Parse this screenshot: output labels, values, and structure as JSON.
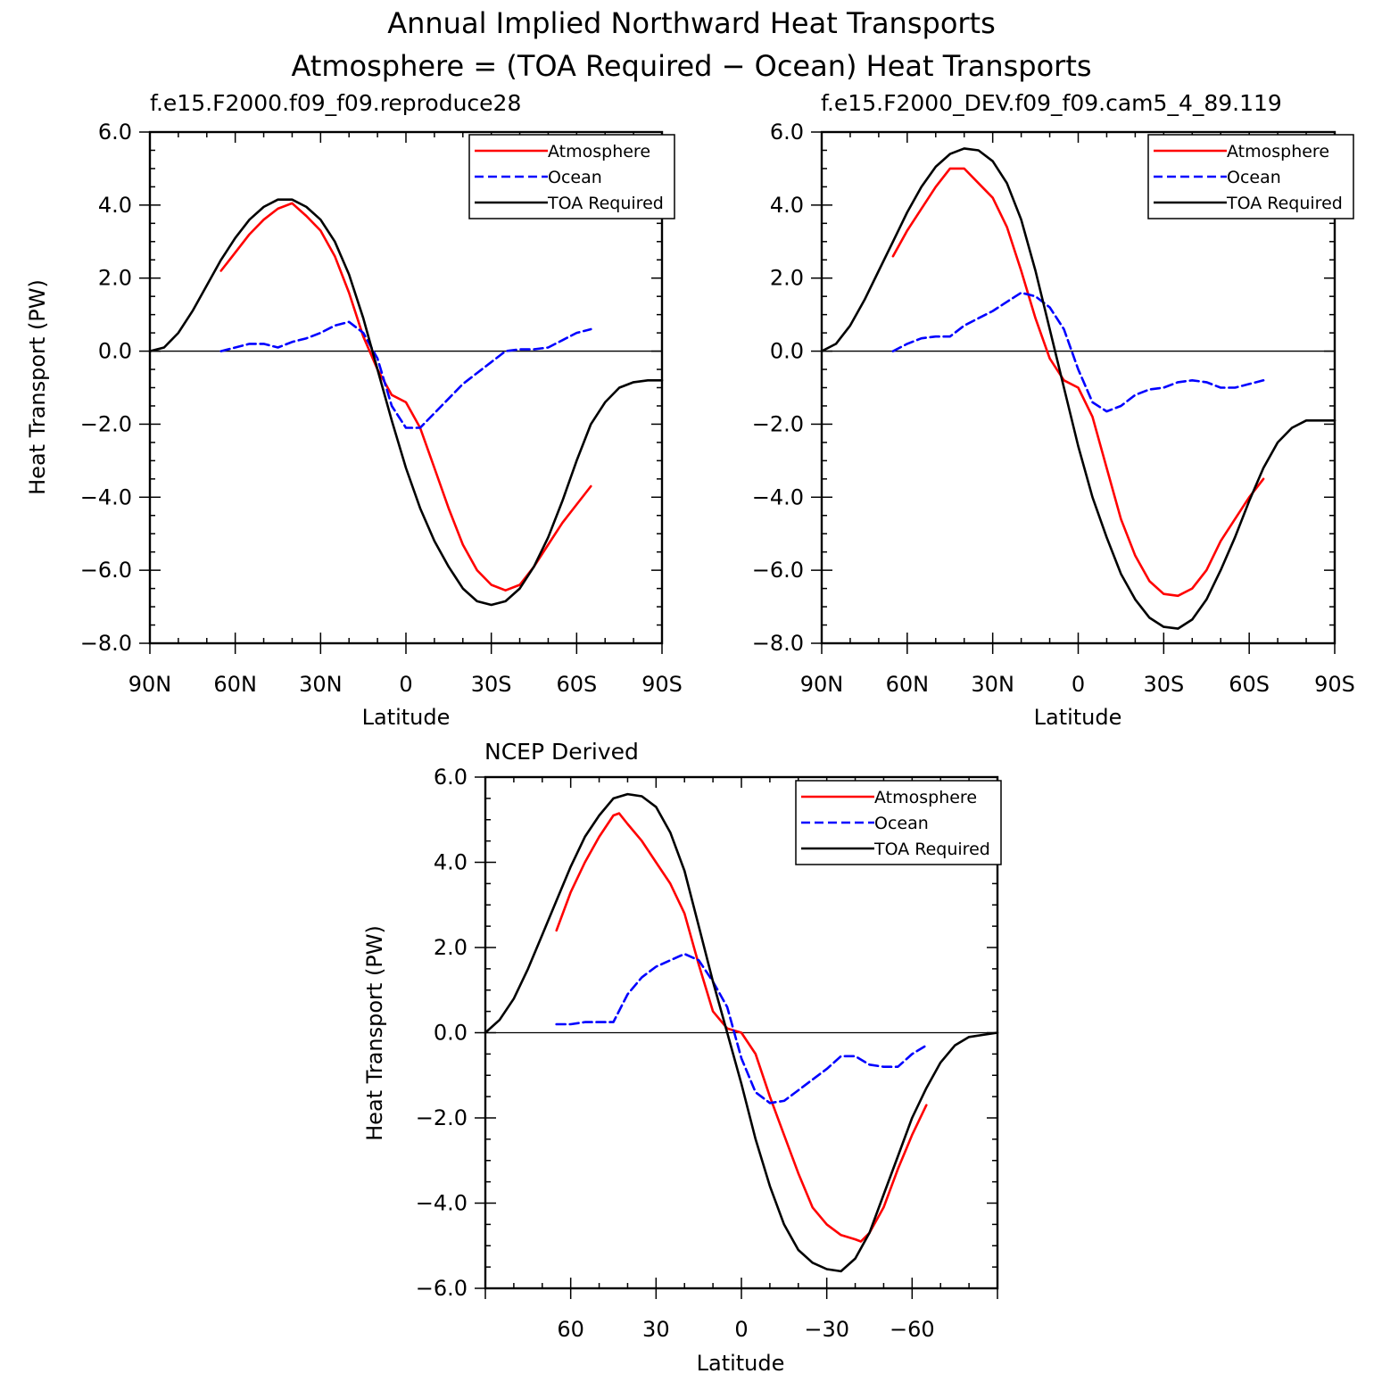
{
  "figure": {
    "title_line1": "Annual Implied Northward Heat Transports",
    "title_line2": "Atmosphere = (TOA Required − Ocean) Heat Transports"
  },
  "colors": {
    "atmosphere": "#ff0000",
    "ocean": "#0000ff",
    "toa": "#000000"
  },
  "chart_data": [
    {
      "type": "line",
      "title": "f.e15.F2000.f09_f09.reproduce28",
      "xlabel": "Latitude",
      "ylabel": "Heat Transport (PW)",
      "xlim": [
        90,
        -90
      ],
      "ylim": [
        -8,
        6
      ],
      "xticks": [
        90,
        60,
        30,
        0,
        -30,
        -60,
        -90
      ],
      "xtick_labels": [
        "90N",
        "60N",
        "30N",
        "0",
        "30S",
        "60S",
        "90S"
      ],
      "yticks": [
        -8,
        -6,
        -4,
        -2,
        0,
        2,
        4,
        6
      ],
      "ytick_labels": [
        "−8.0",
        "−6.0",
        "−4.0",
        "−2.0",
        "0.0",
        "2.0",
        "4.0",
        "6.0"
      ],
      "grid": false,
      "legend_position": "top-right",
      "series": [
        {
          "name": "Atmosphere",
          "color": "#ff0000",
          "dash": "solid",
          "x": [
            65,
            60,
            55,
            50,
            45,
            40,
            35,
            30,
            25,
            20,
            15,
            10,
            5,
            0,
            -5,
            -10,
            -15,
            -20,
            -25,
            -30,
            -35,
            -40,
            -45,
            -50,
            -55,
            -60,
            -65
          ],
          "y": [
            2.2,
            2.7,
            3.2,
            3.6,
            3.9,
            4.05,
            3.7,
            3.3,
            2.6,
            1.6,
            0.4,
            -0.5,
            -1.2,
            -1.4,
            -2.1,
            -3.2,
            -4.3,
            -5.3,
            -6.0,
            -6.4,
            -6.55,
            -6.4,
            -5.9,
            -5.3,
            -4.7,
            -4.2,
            -3.7
          ]
        },
        {
          "name": "Ocean",
          "color": "#0000ff",
          "dash": "dashed",
          "x": [
            65,
            60,
            55,
            50,
            45,
            40,
            35,
            30,
            25,
            20,
            15,
            10,
            5,
            0,
            -5,
            -10,
            -15,
            -20,
            -25,
            -30,
            -35,
            -40,
            -45,
            -50,
            -55,
            -60,
            -65
          ],
          "y": [
            0.0,
            0.1,
            0.2,
            0.2,
            0.1,
            0.25,
            0.35,
            0.5,
            0.7,
            0.8,
            0.5,
            -0.2,
            -1.5,
            -2.1,
            -2.1,
            -1.7,
            -1.3,
            -0.9,
            -0.6,
            -0.3,
            0.0,
            0.05,
            0.05,
            0.1,
            0.3,
            0.5,
            0.6
          ]
        },
        {
          "name": "TOA Required",
          "color": "#000000",
          "dash": "solid",
          "x": [
            90,
            85,
            80,
            75,
            70,
            65,
            60,
            55,
            50,
            45,
            40,
            35,
            30,
            25,
            20,
            15,
            10,
            5,
            0,
            -5,
            -10,
            -15,
            -20,
            -25,
            -30,
            -35,
            -40,
            -45,
            -50,
            -55,
            -60,
            -65,
            -70,
            -75,
            -80,
            -85,
            -90
          ],
          "y": [
            0.0,
            0.1,
            0.5,
            1.1,
            1.8,
            2.5,
            3.1,
            3.6,
            3.95,
            4.15,
            4.15,
            3.95,
            3.6,
            3.0,
            2.1,
            0.9,
            -0.5,
            -1.9,
            -3.2,
            -4.3,
            -5.2,
            -5.9,
            -6.5,
            -6.85,
            -6.95,
            -6.85,
            -6.5,
            -5.9,
            -5.1,
            -4.1,
            -3.0,
            -2.0,
            -1.4,
            -1.0,
            -0.85,
            -0.8,
            -0.8
          ]
        }
      ]
    },
    {
      "type": "line",
      "title": "f.e15.F2000_DEV.f09_f09.cam5_4_89.119",
      "xlabel": "Latitude",
      "ylabel": "",
      "xlim": [
        90,
        -90
      ],
      "ylim": [
        -8,
        6
      ],
      "xticks": [
        90,
        60,
        30,
        0,
        -30,
        -60,
        -90
      ],
      "xtick_labels": [
        "90N",
        "60N",
        "30N",
        "0",
        "30S",
        "60S",
        "90S"
      ],
      "yticks": [
        -8,
        -6,
        -4,
        -2,
        0,
        2,
        4,
        6
      ],
      "ytick_labels": [
        "−8.0",
        "−6.0",
        "−4.0",
        "−2.0",
        "0.0",
        "2.0",
        "4.0",
        "6.0"
      ],
      "grid": false,
      "legend_position": "top-right",
      "series": [
        {
          "name": "Atmosphere",
          "color": "#ff0000",
          "dash": "solid",
          "x": [
            65,
            60,
            55,
            50,
            45,
            40,
            35,
            30,
            25,
            20,
            15,
            10,
            5,
            0,
            -5,
            -10,
            -15,
            -20,
            -25,
            -30,
            -35,
            -40,
            -45,
            -50,
            -55,
            -60,
            -65
          ],
          "y": [
            2.6,
            3.3,
            3.9,
            4.5,
            5.0,
            5.0,
            4.6,
            4.2,
            3.4,
            2.2,
            0.9,
            -0.2,
            -0.8,
            -1.0,
            -1.8,
            -3.2,
            -4.6,
            -5.6,
            -6.3,
            -6.65,
            -6.7,
            -6.5,
            -6.0,
            -5.2,
            -4.6,
            -4.0,
            -3.5
          ]
        },
        {
          "name": "Ocean",
          "color": "#0000ff",
          "dash": "dashed",
          "x": [
            65,
            60,
            55,
            50,
            45,
            40,
            35,
            30,
            25,
            20,
            15,
            10,
            5,
            0,
            -5,
            -10,
            -15,
            -20,
            -25,
            -30,
            -35,
            -40,
            -45,
            -50,
            -55,
            -60,
            -65
          ],
          "y": [
            0.0,
            0.2,
            0.35,
            0.4,
            0.4,
            0.7,
            0.9,
            1.1,
            1.35,
            1.6,
            1.5,
            1.2,
            0.6,
            -0.5,
            -1.4,
            -1.65,
            -1.5,
            -1.2,
            -1.05,
            -1.0,
            -0.85,
            -0.8,
            -0.85,
            -1.0,
            -1.0,
            -0.9,
            -0.8
          ]
        },
        {
          "name": "TOA Required",
          "color": "#000000",
          "dash": "solid",
          "x": [
            90,
            85,
            80,
            75,
            70,
            65,
            60,
            55,
            50,
            45,
            40,
            35,
            30,
            25,
            20,
            15,
            10,
            5,
            0,
            -5,
            -10,
            -15,
            -20,
            -25,
            -30,
            -35,
            -40,
            -45,
            -50,
            -55,
            -60,
            -65,
            -70,
            -75,
            -80,
            -85,
            -90
          ],
          "y": [
            0.0,
            0.2,
            0.7,
            1.4,
            2.2,
            3.0,
            3.8,
            4.5,
            5.05,
            5.4,
            5.55,
            5.5,
            5.2,
            4.6,
            3.6,
            2.2,
            0.6,
            -1.0,
            -2.6,
            -4.0,
            -5.1,
            -6.1,
            -6.8,
            -7.3,
            -7.55,
            -7.6,
            -7.35,
            -6.8,
            -6.0,
            -5.1,
            -4.1,
            -3.2,
            -2.5,
            -2.1,
            -1.9,
            -1.9,
            -1.9
          ]
        }
      ]
    },
    {
      "type": "line",
      "title": "NCEP Derived",
      "xlabel": "Latitude",
      "ylabel": "Heat Transport (PW)",
      "xlim": [
        90,
        -90
      ],
      "ylim": [
        -6,
        6
      ],
      "xticks": [
        60,
        30,
        0,
        -30,
        -60
      ],
      "xtick_labels": [
        "60",
        "30",
        "0",
        "−30",
        "−60"
      ],
      "yticks": [
        -6,
        -4,
        -2,
        0,
        2,
        4,
        6
      ],
      "ytick_labels": [
        "−6.0",
        "−4.0",
        "−2.0",
        "0.0",
        "2.0",
        "4.0",
        "6.0"
      ],
      "grid": false,
      "legend_position": "top-right",
      "series": [
        {
          "name": "Atmosphere",
          "color": "#ff0000",
          "dash": "solid",
          "x": [
            65,
            60,
            55,
            50,
            45,
            43,
            40,
            35,
            30,
            25,
            20,
            15,
            10,
            5,
            0,
            -5,
            -10,
            -15,
            -20,
            -25,
            -30,
            -35,
            -40,
            -42,
            -45,
            -50,
            -55,
            -60,
            -65
          ],
          "y": [
            2.4,
            3.3,
            4.0,
            4.6,
            5.1,
            5.15,
            4.9,
            4.5,
            4.0,
            3.5,
            2.8,
            1.6,
            0.5,
            0.1,
            0.0,
            -0.5,
            -1.5,
            -2.4,
            -3.3,
            -4.1,
            -4.5,
            -4.75,
            -4.85,
            -4.9,
            -4.7,
            -4.1,
            -3.2,
            -2.4,
            -1.7
          ]
        },
        {
          "name": "Ocean",
          "color": "#0000ff",
          "dash": "dashed",
          "x": [
            65,
            60,
            55,
            50,
            45,
            40,
            35,
            30,
            25,
            20,
            15,
            10,
            5,
            0,
            -5,
            -10,
            -15,
            -20,
            -25,
            -30,
            -35,
            -40,
            -45,
            -50,
            -55,
            -60,
            -65
          ],
          "y": [
            0.2,
            0.2,
            0.25,
            0.25,
            0.25,
            0.9,
            1.3,
            1.55,
            1.7,
            1.85,
            1.7,
            1.2,
            0.6,
            -0.6,
            -1.4,
            -1.65,
            -1.6,
            -1.35,
            -1.1,
            -0.85,
            -0.55,
            -0.55,
            -0.75,
            -0.8,
            -0.8,
            -0.5,
            -0.3
          ]
        },
        {
          "name": "TOA Required",
          "color": "#000000",
          "dash": "solid",
          "x": [
            90,
            85,
            80,
            75,
            70,
            65,
            60,
            55,
            50,
            45,
            40,
            35,
            30,
            25,
            20,
            15,
            10,
            5,
            0,
            -5,
            -10,
            -15,
            -20,
            -25,
            -30,
            -35,
            -40,
            -45,
            -50,
            -55,
            -60,
            -65,
            -70,
            -75,
            -80,
            -85,
            -90
          ],
          "y": [
            0.0,
            0.3,
            0.8,
            1.5,
            2.3,
            3.1,
            3.9,
            4.6,
            5.1,
            5.5,
            5.6,
            5.55,
            5.3,
            4.7,
            3.8,
            2.5,
            1.2,
            0.0,
            -1.2,
            -2.5,
            -3.6,
            -4.5,
            -5.1,
            -5.4,
            -5.55,
            -5.6,
            -5.3,
            -4.7,
            -3.8,
            -2.9,
            -2.0,
            -1.3,
            -0.7,
            -0.3,
            -0.1,
            -0.05,
            0.0
          ]
        }
      ]
    }
  ]
}
